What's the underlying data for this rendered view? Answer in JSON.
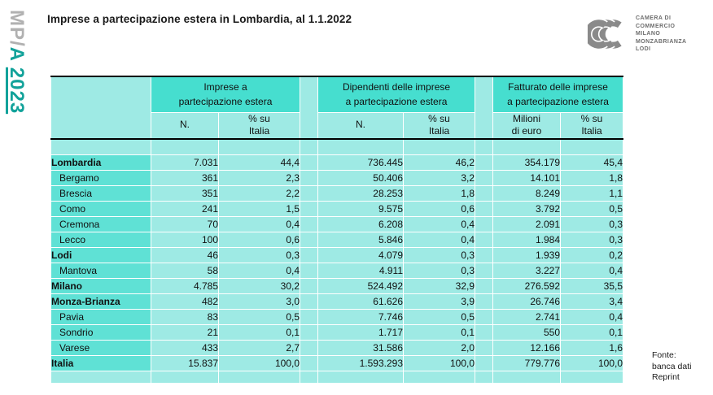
{
  "page": {
    "title": "Imprese a partecipazione estera in Lombardia, al 1.1.2022"
  },
  "side_logo": {
    "gray_part": "MP/",
    "teal_part": "A ",
    "underlined_part": "2023"
  },
  "org_logo": {
    "lines": [
      "CAMERA DI",
      "COMMERCIO",
      "MILANO",
      "MONZABRIANZA",
      "LODI"
    ]
  },
  "source": {
    "lines": [
      "Fonte:",
      "banca dati",
      "Reprint"
    ]
  },
  "colors": {
    "group_header": "#46decf",
    "row_label": "#5fe1d5",
    "cell": "#9eeae4",
    "accent_teal": "#12a29a",
    "logo_gray": "#b1b1b1"
  },
  "table": {
    "groups": [
      {
        "title": "Imprese a\npartecipazione estera"
      },
      {
        "title": "Dipendenti delle imprese\na partecipazione estera"
      },
      {
        "title": "Fatturato delle imprese\na partecipazione estera"
      }
    ],
    "subheaders": [
      "N.",
      "% su\nItalia",
      "N.",
      "% su\nItalia",
      "Milioni\ndi euro",
      "% su\nItalia"
    ],
    "rows": [
      {
        "label": "Lombardia",
        "bold": true,
        "indent": false,
        "values": [
          "7.031",
          "44,4",
          "736.445",
          "46,2",
          "354.179",
          "45,4"
        ]
      },
      {
        "label": "Bergamo",
        "bold": false,
        "indent": true,
        "values": [
          "361",
          "2,3",
          "50.406",
          "3,2",
          "14.101",
          "1,8"
        ]
      },
      {
        "label": "Brescia",
        "bold": false,
        "indent": true,
        "values": [
          "351",
          "2,2",
          "28.253",
          "1,8",
          "8.249",
          "1,1"
        ]
      },
      {
        "label": "Como",
        "bold": false,
        "indent": true,
        "values": [
          "241",
          "1,5",
          "9.575",
          "0,6",
          "3.792",
          "0,5"
        ]
      },
      {
        "label": "Cremona",
        "bold": false,
        "indent": true,
        "values": [
          "70",
          "0,4",
          "6.208",
          "0,4",
          "2.091",
          "0,3"
        ]
      },
      {
        "label": "Lecco",
        "bold": false,
        "indent": true,
        "values": [
          "100",
          "0,6",
          "5.846",
          "0,4",
          "1.984",
          "0,3"
        ]
      },
      {
        "label": "Lodi",
        "bold": true,
        "indent": false,
        "values": [
          "46",
          "0,3",
          "4.079",
          "0,3",
          "1.939",
          "0,2"
        ]
      },
      {
        "label": "Mantova",
        "bold": false,
        "indent": true,
        "values": [
          "58",
          "0,4",
          "4.911",
          "0,3",
          "3.227",
          "0,4"
        ]
      },
      {
        "label": "Milano",
        "bold": true,
        "indent": false,
        "values": [
          "4.785",
          "30,2",
          "524.492",
          "32,9",
          "276.592",
          "35,5"
        ]
      },
      {
        "label": "Monza-Brianza",
        "bold": true,
        "indent": false,
        "values": [
          "482",
          "3,0",
          "61.626",
          "3,9",
          "26.746",
          "3,4"
        ]
      },
      {
        "label": "Pavia",
        "bold": false,
        "indent": true,
        "values": [
          "83",
          "0,5",
          "7.746",
          "0,5",
          "2.741",
          "0,4"
        ]
      },
      {
        "label": "Sondrio",
        "bold": false,
        "indent": true,
        "values": [
          "21",
          "0,1",
          "1.717",
          "0,1",
          "550",
          "0,1"
        ]
      },
      {
        "label": "Varese",
        "bold": false,
        "indent": true,
        "values": [
          "433",
          "2,7",
          "31.586",
          "2,0",
          "12.166",
          "1,6"
        ]
      },
      {
        "label": "Italia",
        "bold": true,
        "indent": false,
        "values": [
          "15.837",
          "100,0",
          "1.593.293",
          "100,0",
          "779.776",
          "100,0"
        ]
      }
    ]
  }
}
